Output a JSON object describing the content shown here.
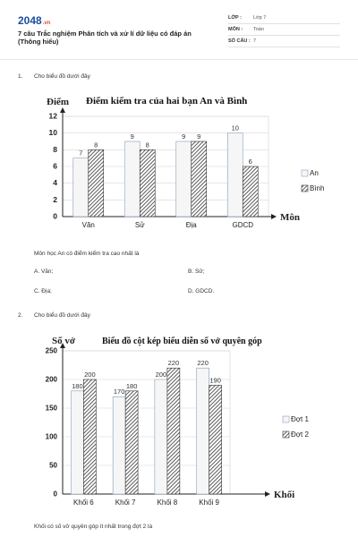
{
  "header": {
    "logo": "2048",
    "logo_sub": ".vn",
    "title": "7 câu Trắc nghiệm Phân tích và xử lí dữ liệu có đáp án (Thông hiểu)",
    "meta": [
      {
        "key": "LỚP :",
        "value": "Lớp 7"
      },
      {
        "key": "MÔN :",
        "value": "Toán"
      },
      {
        "key": "SỐ CÂU :",
        "value": "7"
      }
    ]
  },
  "questions": [
    {
      "number": "1.",
      "prompt": "Cho biểu đồ dưới đây",
      "question": "Môn học An có điểm kiểm tra cao nhất là",
      "options": [
        "A. Văn;",
        "B. Sử;",
        "C. Địa;",
        "D. GDCD."
      ]
    },
    {
      "number": "2.",
      "prompt": "Cho biểu đồ dưới đây",
      "question": "Khối có số vở quyên góp ít nhất trong đợt 2 là"
    }
  ],
  "chart_data": [
    {
      "type": "bar",
      "title": "Điểm kiểm tra của hai bạn An  và Bình",
      "ylabel": "Điểm",
      "xlabel": "Môn",
      "categories": [
        "Văn",
        "Sử",
        "Địa",
        "GDCD"
      ],
      "series": [
        {
          "name": "An",
          "values": [
            7,
            9,
            9,
            10
          ],
          "color": "#ffffff"
        },
        {
          "name": "Bình",
          "values": [
            8,
            8,
            9,
            6
          ],
          "color": "#444444"
        }
      ],
      "ylim": [
        0,
        12
      ],
      "yticks": [
        0,
        2,
        4,
        6,
        8,
        10,
        12
      ],
      "grid": true,
      "legend": "right"
    },
    {
      "type": "bar",
      "title": "Biểu đồ cột kép biểu diễn số vở quyên góp",
      "ylabel": "Số vở",
      "xlabel": "Khối",
      "categories": [
        "Khối 6",
        "Khối 7",
        "Khối 8",
        "Khối 9"
      ],
      "series": [
        {
          "name": "Đợt 1",
          "values": [
            180,
            170,
            200,
            220
          ],
          "color": "#ffffff"
        },
        {
          "name": "Đợt 2",
          "values": [
            200,
            180,
            220,
            190
          ],
          "color": "#444444"
        }
      ],
      "ylim": [
        0,
        250
      ],
      "yticks": [
        0,
        50,
        100,
        150,
        200,
        250
      ],
      "grid": true,
      "legend": "right"
    }
  ]
}
